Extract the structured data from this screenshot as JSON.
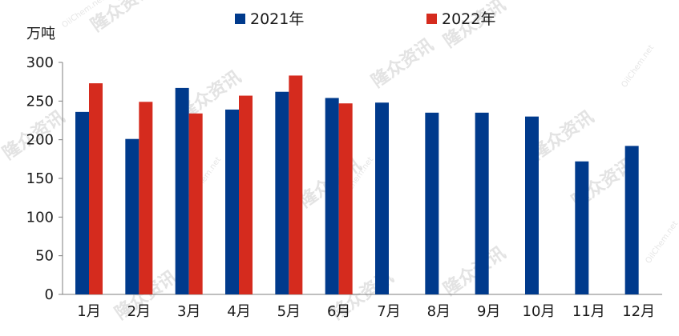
{
  "chart_data": {
    "type": "bar",
    "ylabel": "万吨",
    "ylim": [
      0,
      300
    ],
    "yticks": [
      "0",
      "50",
      "100",
      "150",
      "200",
      "250",
      "300"
    ],
    "grid": false,
    "legend_position": "top",
    "categories": [
      "1月",
      "2月",
      "3月",
      "4月",
      "5月",
      "6月",
      "7月",
      "8月",
      "9月",
      "10月",
      "11月",
      "12月"
    ],
    "series": [
      {
        "name": "2021年",
        "color": "#003a8c",
        "values": [
          236,
          201,
          267,
          239,
          262,
          254,
          248,
          235,
          235,
          230,
          172,
          192
        ]
      },
      {
        "name": "2022年",
        "color": "#d52b1e",
        "values": [
          273,
          249,
          234,
          257,
          283,
          247,
          null,
          null,
          null,
          null,
          null,
          null
        ]
      }
    ]
  },
  "watermark": {
    "brand": "隆众资讯",
    "site": "OilChem.net"
  }
}
